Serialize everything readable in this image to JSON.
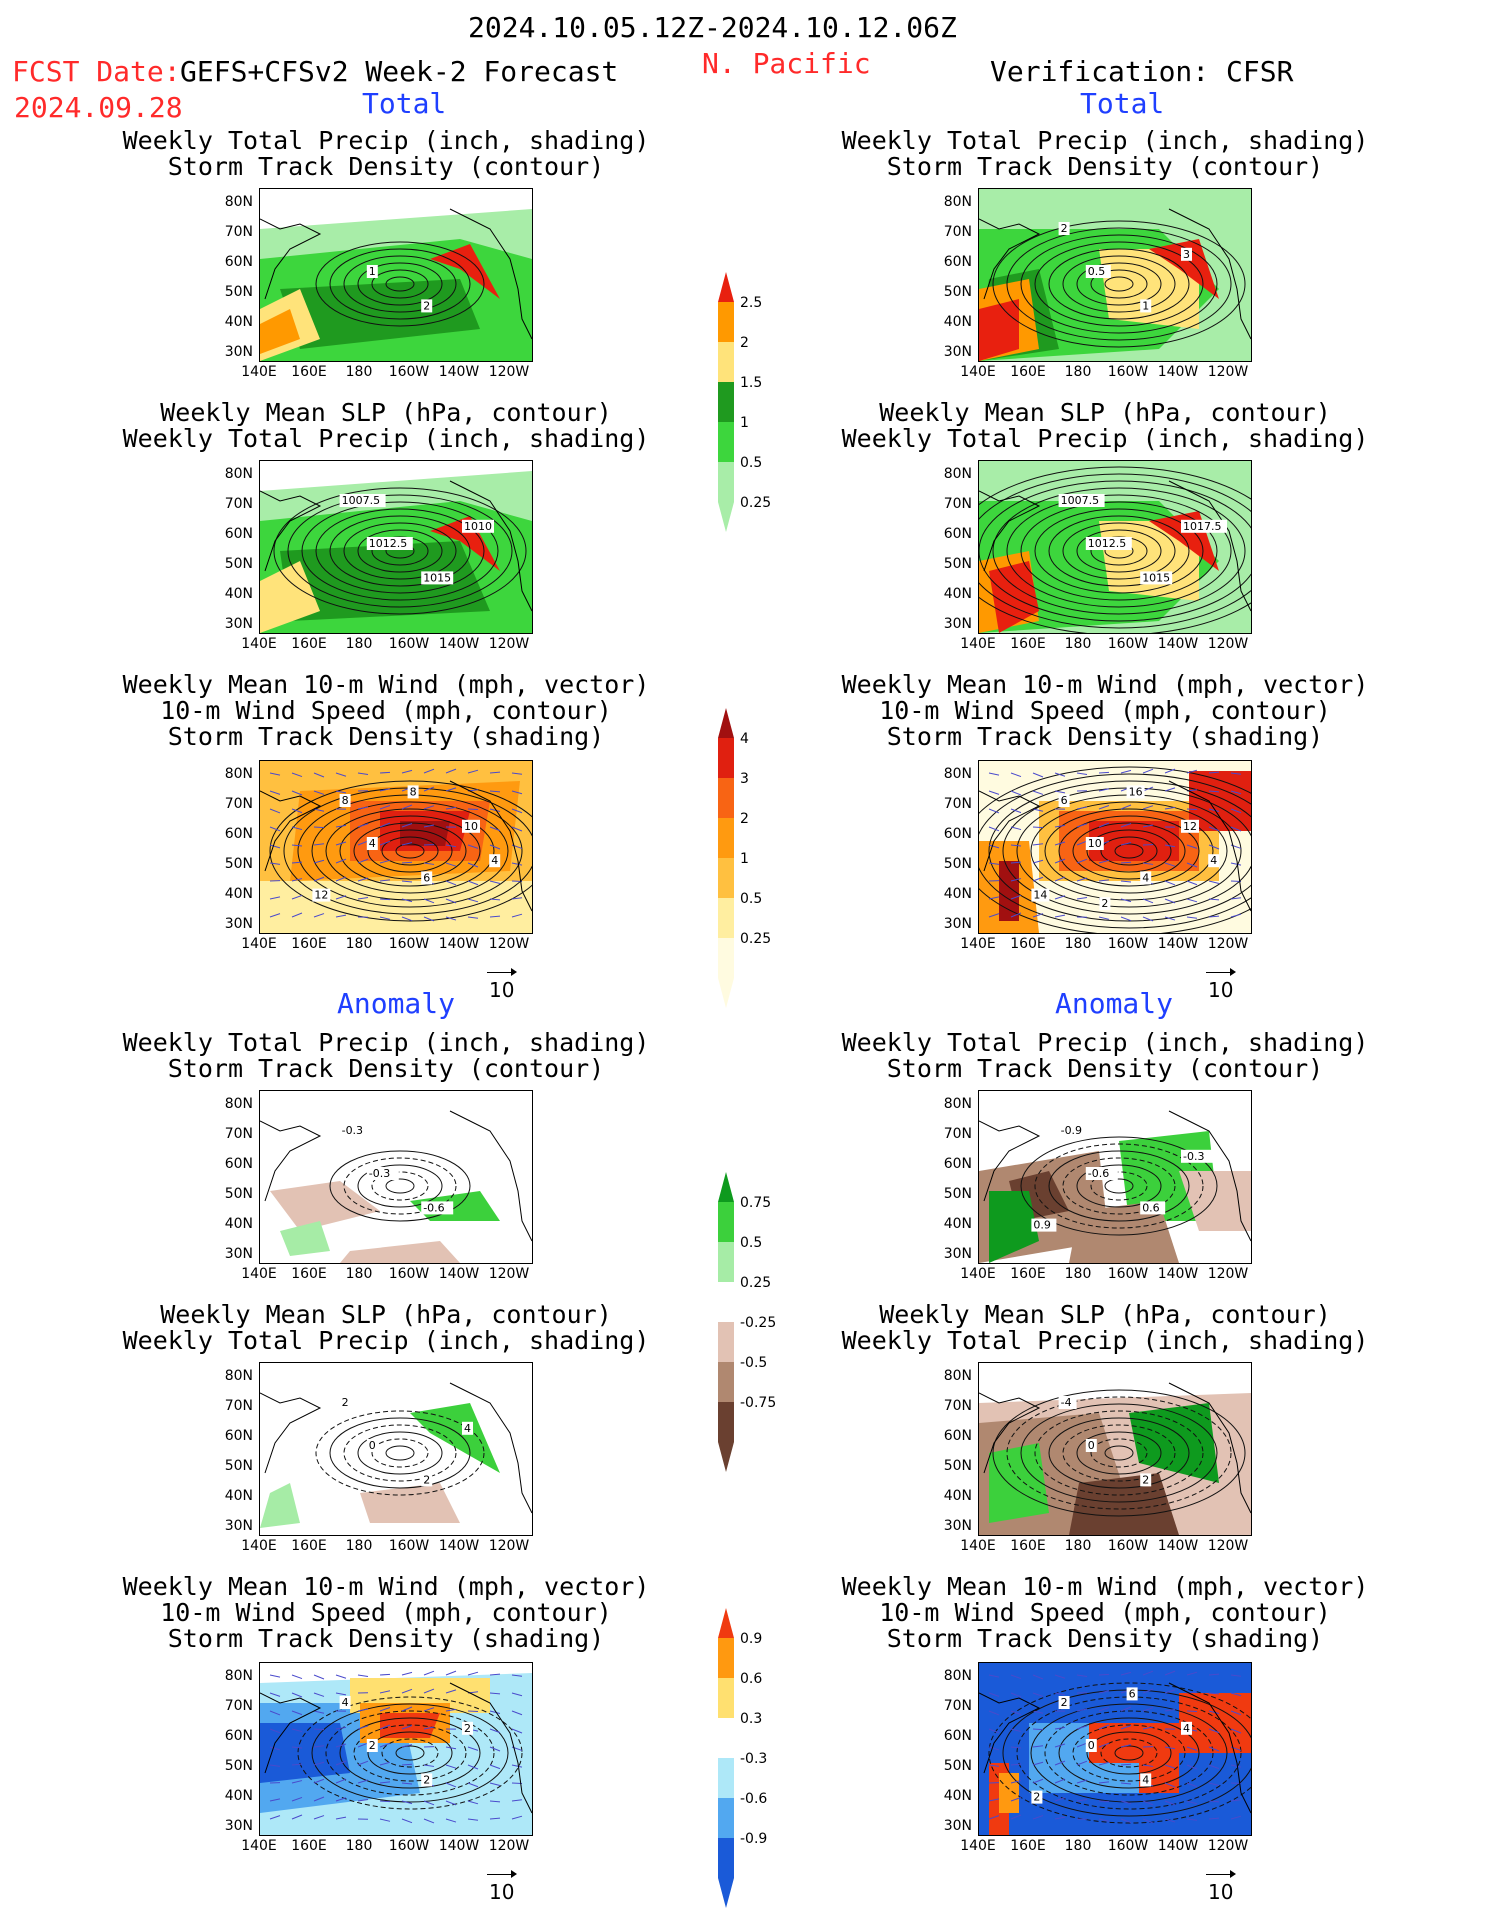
{
  "header": {
    "date_range": "2024.10.05.12Z-2024.10.12.06Z",
    "fcst_label": "FCST Date:",
    "fcst_model": "GEFS+CFSv2 Week-2 Forecast",
    "fcst_date": "2024.09.28",
    "region": "N. Pacific",
    "verification": "Verification: CFSR"
  },
  "sections": {
    "left_total": "Total",
    "right_total": "Total",
    "left_anomaly": "Anomaly",
    "right_anomaly": "Anomaly"
  },
  "titles": {
    "precip_storm": "Weekly Total Precip (inch, shading)\nStorm Track Density (contour)",
    "slp_precip": "Weekly Mean SLP (hPa, contour)\nWeekly Total Precip (inch, shading)",
    "wind_storm": "Weekly Mean 10-m Wind (mph, vector)\n10-m Wind Speed (mph, contour)\nStorm Track Density (shading)"
  },
  "axes": {
    "lat_ticks": [
      "80N",
      "70N",
      "60N",
      "50N",
      "40N",
      "30N"
    ],
    "lon_ticks": [
      "140E",
      "160E",
      "180",
      "160W",
      "140W",
      "120W"
    ]
  },
  "vector_ref": "10",
  "colorbars": {
    "precip_total": {
      "labels": [
        "2.5",
        "2",
        "1.5",
        "1",
        "0.5",
        "0.25"
      ],
      "colors": [
        "#e8200f",
        "#ff9900",
        "#ffe37a",
        "#1f9a1f",
        "#3dd63d",
        "#a8eda8"
      ]
    },
    "storm_total": {
      "labels": [
        "4",
        "3",
        "2",
        "1",
        "0.5",
        "0.25"
      ],
      "colors": [
        "#a11010",
        "#e02010",
        "#f86414",
        "#ff9a10",
        "#ffc040",
        "#ffeea0",
        "#fffbe0"
      ]
    },
    "precip_anom": {
      "labels": [
        "0.75",
        "0.5",
        "0.25",
        "-0.25",
        "-0.5",
        "-0.75"
      ],
      "colors": [
        "#0e9a1e",
        "#3cd03c",
        "#a6eca6",
        "#ffffff",
        "#e2c2b4",
        "#b08870",
        "#6a4030"
      ]
    },
    "storm_anom": {
      "labels": [
        "0.9",
        "0.6",
        "0.3",
        "-0.3",
        "-0.6",
        "-0.9"
      ],
      "colors": [
        "#f03a10",
        "#ff9910",
        "#ffe070",
        "#ffffff",
        "#aee8f8",
        "#52a8f0",
        "#1a5ad8"
      ]
    }
  },
  "panels": [
    {
      "id": "fcst-total-precip-storm",
      "contour_labels": [
        "1",
        "2"
      ]
    },
    {
      "id": "fcst-total-slp-precip",
      "contour_labels": [
        "1012.5",
        "1015",
        "1007.5",
        "1010"
      ]
    },
    {
      "id": "fcst-total-wind-storm",
      "contour_labels": [
        "4",
        "6",
        "8",
        "10",
        "12",
        "8",
        "4"
      ]
    },
    {
      "id": "fcst-anom-precip-storm",
      "contour_labels": [
        "-0.3",
        "-0.6",
        "-0.3"
      ]
    },
    {
      "id": "fcst-anom-slp-precip",
      "contour_labels": [
        "0",
        "2",
        "2",
        "4"
      ]
    },
    {
      "id": "fcst-anom-wind-storm",
      "contour_labels": [
        "2",
        "2",
        "4",
        "2"
      ]
    },
    {
      "id": "ver-total-precip-storm",
      "contour_labels": [
        "0.5",
        "1",
        "2",
        "3"
      ]
    },
    {
      "id": "ver-total-slp-precip",
      "contour_labels": [
        "1012.5",
        "1015",
        "1007.5",
        "1017.5"
      ]
    },
    {
      "id": "ver-total-wind-storm",
      "contour_labels": [
        "10",
        "4",
        "6",
        "12",
        "14",
        "16",
        "4",
        "2"
      ]
    },
    {
      "id": "ver-anom-precip-storm",
      "contour_labels": [
        "-0.6",
        "0.6",
        "-0.9",
        "-0.3",
        "0.9"
      ]
    },
    {
      "id": "ver-anom-slp-precip",
      "contour_labels": [
        "0",
        "2",
        "-4"
      ]
    },
    {
      "id": "ver-anom-wind-storm",
      "contour_labels": [
        "0",
        "4",
        "2",
        "4",
        "2",
        "6"
      ]
    }
  ]
}
